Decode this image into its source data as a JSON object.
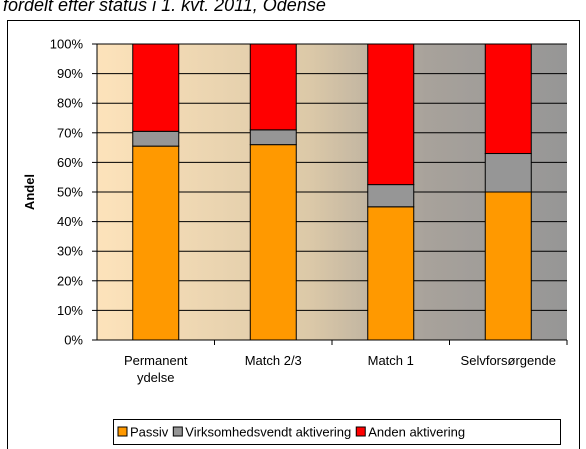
{
  "chart_data": {
    "type": "stacked_bar",
    "title": "fordelt efter status i 1. kvt. 2011, Odense",
    "ylabel": "Andel",
    "categories": [
      "Permanent\nydelse",
      "Match 2/3",
      "Match 1",
      "Selvforsørgende"
    ],
    "series": [
      {
        "name": "Passiv",
        "color": "#ff9900",
        "values": [
          65.5,
          66,
          45,
          50
        ]
      },
      {
        "name": "Virksomhedsvendt aktivering",
        "color": "#969696",
        "values": [
          5,
          5,
          7.5,
          13
        ]
      },
      {
        "name": "Anden aktivering",
        "color": "#ff0000",
        "values": [
          29.5,
          29,
          47.5,
          37
        ]
      }
    ],
    "ylim": [
      0,
      100
    ],
    "yticks": [
      {
        "value": 0,
        "label": "0%"
      },
      {
        "value": 10,
        "label": "10%"
      },
      {
        "value": 20,
        "label": "20%"
      },
      {
        "value": 30,
        "label": "30%"
      },
      {
        "value": 40,
        "label": "40%"
      },
      {
        "value": 50,
        "label": "50%"
      },
      {
        "value": 60,
        "label": "60%"
      },
      {
        "value": 70,
        "label": "70%"
      },
      {
        "value": 80,
        "label": "80%"
      },
      {
        "value": 90,
        "label": "90%"
      },
      {
        "value": 100,
        "label": "100%"
      }
    ],
    "grid": true,
    "legend": "bottom"
  }
}
